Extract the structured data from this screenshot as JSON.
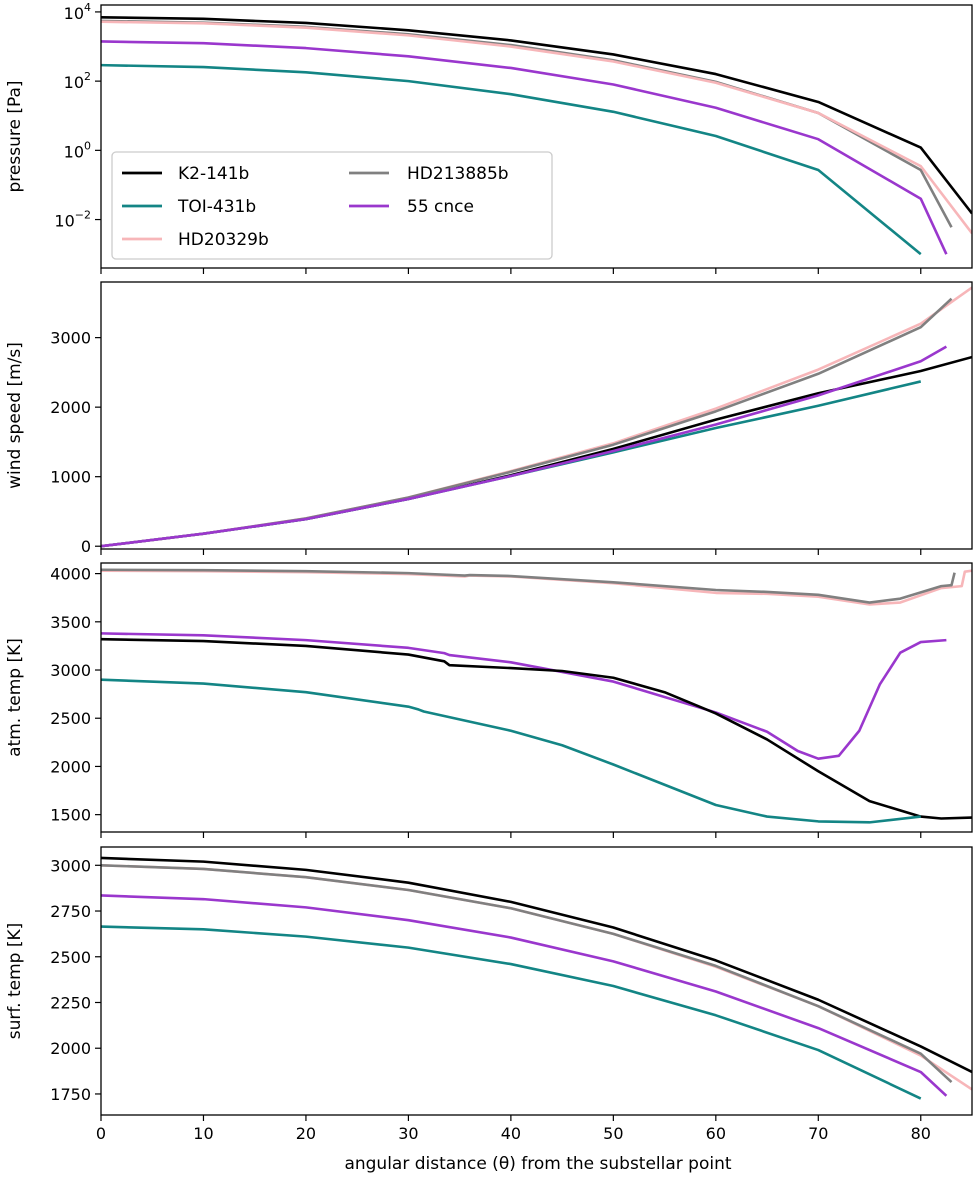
{
  "figure": {
    "xlabel": "angular distance (θ) from the substellar point"
  },
  "legend": {
    "items": [
      {
        "name": "K2-141b",
        "color": "#000000"
      },
      {
        "name": "TOI-431b",
        "color": "#138585"
      },
      {
        "name": "HD20329b",
        "color": "#f7b6b9"
      },
      {
        "name": "HD213885b",
        "color": "#808080"
      },
      {
        "name": "55 cnce",
        "color": "#9a37cd"
      }
    ]
  },
  "chart_data": [
    {
      "type": "line",
      "ylabel": "pressure [Pa]",
      "yscale": "log",
      "xlim": [
        0,
        85
      ],
      "ylim_log10": [
        -3.4,
        4.2
      ],
      "xticks": [
        0,
        10,
        20,
        30,
        40,
        50,
        60,
        70,
        80
      ],
      "yticks": [
        {
          "value": 100,
          "base": "10",
          "exp": "2"
        },
        {
          "value": 1,
          "base": "10",
          "exp": "0"
        },
        {
          "value": 0.01,
          "base": "10",
          "exp": "−2"
        },
        {
          "value": 10000,
          "base": "10",
          "exp": "4"
        }
      ],
      "series": [
        {
          "name": "K2-141b",
          "x": [
            0,
            10,
            20,
            30,
            40,
            50,
            60,
            70,
            80,
            85
          ],
          "y": [
            7000,
            6300,
            4800,
            2950,
            1500,
            590,
            160,
            25,
            1.2,
            0.015
          ]
        },
        {
          "name": "HD213885b",
          "x": [
            0,
            10,
            20,
            30,
            40,
            50,
            60,
            70,
            80,
            83
          ],
          "y": [
            5500,
            4900,
            3700,
            2250,
            1100,
            400,
            95,
            12,
            0.27,
            0.006
          ]
        },
        {
          "name": "HD20329b",
          "x": [
            0,
            10,
            20,
            30,
            40,
            50,
            60,
            70,
            80,
            85
          ],
          "y": [
            5200,
            4700,
            3500,
            2100,
            1000,
            370,
            90,
            12,
            0.35,
            0.004
          ]
        },
        {
          "name": "55 cnce",
          "x": [
            0,
            10,
            20,
            30,
            40,
            50,
            60,
            70,
            80,
            82.5
          ],
          "y": [
            1400,
            1250,
            900,
            520,
            240,
            80,
            17,
            2.1,
            0.04,
            0.001
          ]
        },
        {
          "name": "TOI-431b",
          "x": [
            0,
            10,
            20,
            30,
            40,
            50,
            60,
            70,
            80
          ],
          "y": [
            290,
            255,
            180,
            100,
            42,
            13,
            2.6,
            0.27,
            0.001
          ]
        }
      ]
    },
    {
      "type": "line",
      "ylabel": "wind speed [m/s]",
      "yscale": "linear",
      "xlim": [
        0,
        85
      ],
      "ylim": [
        -40,
        3800
      ],
      "xticks": [
        0,
        10,
        20,
        30,
        40,
        50,
        60,
        70,
        80
      ],
      "yticks": [
        0,
        1000,
        2000,
        3000
      ],
      "series": [
        {
          "name": "K2-141b",
          "x": [
            0,
            10,
            20,
            30,
            40,
            50,
            60,
            70,
            80,
            85
          ],
          "y": [
            0,
            180,
            390,
            680,
            1020,
            1400,
            1820,
            2200,
            2520,
            2720
          ]
        },
        {
          "name": "TOI-431b",
          "x": [
            0,
            10,
            20,
            30,
            40,
            50,
            60,
            70,
            80
          ],
          "y": [
            0,
            180,
            390,
            680,
            1010,
            1350,
            1700,
            2020,
            2370
          ]
        },
        {
          "name": "HD20329b",
          "x": [
            0,
            10,
            20,
            30,
            40,
            50,
            60,
            70,
            80,
            85
          ],
          "y": [
            0,
            180,
            400,
            700,
            1080,
            1480,
            1980,
            2540,
            3200,
            3720
          ]
        },
        {
          "name": "HD213885b",
          "x": [
            0,
            10,
            20,
            30,
            40,
            50,
            60,
            70,
            80,
            83
          ],
          "y": [
            0,
            180,
            400,
            700,
            1070,
            1460,
            1940,
            2480,
            3150,
            3560
          ]
        },
        {
          "name": "55 cnce",
          "x": [
            0,
            10,
            20,
            30,
            40,
            50,
            60,
            70,
            80,
            82.5
          ],
          "y": [
            0,
            180,
            390,
            680,
            1010,
            1370,
            1750,
            2170,
            2660,
            2870
          ]
        }
      ]
    },
    {
      "type": "line",
      "ylabel": "atm. temp [K]",
      "yscale": "linear",
      "xlim": [
        0,
        85
      ],
      "ylim": [
        1320,
        4110
      ],
      "xticks": [
        0,
        10,
        20,
        30,
        40,
        50,
        60,
        70,
        80
      ],
      "yticks": [
        1500,
        2000,
        2500,
        3000,
        3500,
        4000
      ],
      "series": [
        {
          "name": "HD20329b",
          "x": [
            0,
            10,
            20,
            30,
            35.5,
            36,
            40,
            50,
            60,
            65,
            70,
            75,
            78,
            82,
            84,
            84.3,
            85
          ],
          "y": [
            4030,
            4025,
            4015,
            3995,
            3970,
            3980,
            3970,
            3900,
            3800,
            3790,
            3760,
            3680,
            3700,
            3850,
            3870,
            4020,
            4030
          ]
        },
        {
          "name": "HD213885b",
          "x": [
            0,
            10,
            20,
            30,
            35.5,
            36,
            40,
            50,
            60,
            65,
            70,
            75,
            78,
            82,
            83,
            83.3
          ],
          "y": [
            4040,
            4035,
            4025,
            4005,
            3980,
            3985,
            3975,
            3910,
            3830,
            3810,
            3780,
            3700,
            3740,
            3870,
            3880,
            4010
          ]
        },
        {
          "name": "55 cnce",
          "x": [
            0,
            10,
            20,
            30,
            33.5,
            34,
            40,
            50,
            60,
            65,
            68,
            70,
            72,
            74,
            76,
            78,
            80,
            82.5
          ],
          "y": [
            3380,
            3360,
            3310,
            3230,
            3175,
            3155,
            3080,
            2880,
            2560,
            2360,
            2160,
            2080,
            2110,
            2370,
            2850,
            3180,
            3290,
            3310
          ]
        },
        {
          "name": "K2-141b",
          "x": [
            0,
            10,
            20,
            30,
            33.5,
            34,
            40,
            45,
            50,
            55,
            60,
            65,
            70,
            75,
            80,
            82,
            85
          ],
          "y": [
            3320,
            3300,
            3250,
            3160,
            3090,
            3050,
            3020,
            2990,
            2920,
            2770,
            2550,
            2280,
            1950,
            1640,
            1480,
            1460,
            1470
          ]
        },
        {
          "name": "TOI-431b",
          "x": [
            0,
            10,
            20,
            30,
            31,
            31.5,
            40,
            45,
            50,
            55,
            60,
            65,
            70,
            75,
            80
          ],
          "y": [
            2900,
            2860,
            2770,
            2620,
            2590,
            2570,
            2370,
            2220,
            2020,
            1810,
            1600,
            1480,
            1430,
            1420,
            1480
          ]
        }
      ]
    },
    {
      "type": "line",
      "ylabel": "surf. temp [K]",
      "yscale": "linear",
      "xlim": [
        0,
        85
      ],
      "ylim": [
        1635,
        3100
      ],
      "xticks": [
        0,
        10,
        20,
        30,
        40,
        50,
        60,
        70,
        80
      ],
      "yticks": [
        1750,
        2000,
        2250,
        2500,
        2750,
        3000
      ],
      "series": [
        {
          "name": "K2-141b",
          "x": [
            0,
            10,
            20,
            30,
            40,
            50,
            60,
            70,
            80,
            85
          ],
          "y": [
            3040,
            3020,
            2975,
            2905,
            2800,
            2660,
            2480,
            2265,
            2010,
            1870
          ]
        },
        {
          "name": "HD20329b",
          "x": [
            0,
            10,
            20,
            30,
            40,
            50,
            60,
            70,
            80,
            85
          ],
          "y": [
            3000,
            2980,
            2935,
            2865,
            2765,
            2625,
            2445,
            2230,
            1960,
            1775
          ]
        },
        {
          "name": "HD213885b",
          "x": [
            0,
            10,
            20,
            30,
            40,
            50,
            60,
            70,
            80,
            83
          ],
          "y": [
            3000,
            2980,
            2935,
            2865,
            2765,
            2625,
            2450,
            2230,
            1970,
            1815
          ]
        },
        {
          "name": "55 cnce",
          "x": [
            0,
            10,
            20,
            30,
            40,
            50,
            60,
            70,
            80,
            82.5
          ],
          "y": [
            2835,
            2815,
            2770,
            2700,
            2605,
            2475,
            2310,
            2110,
            1870,
            1740
          ]
        },
        {
          "name": "TOI-431b",
          "x": [
            0,
            10,
            20,
            30,
            40,
            50,
            60,
            70,
            80
          ],
          "y": [
            2665,
            2650,
            2610,
            2550,
            2460,
            2340,
            2180,
            1990,
            1725
          ]
        }
      ]
    }
  ]
}
